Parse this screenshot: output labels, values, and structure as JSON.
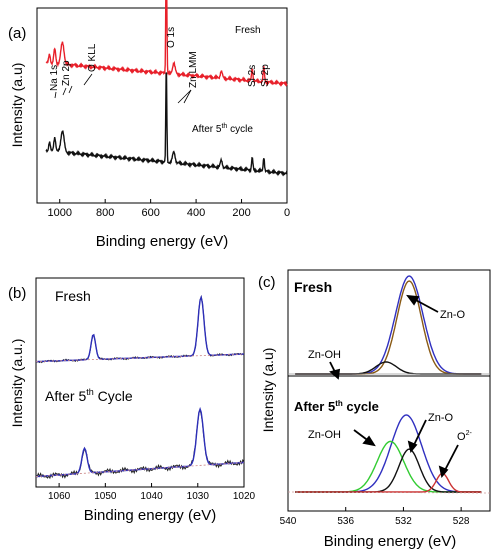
{
  "chart_data": [
    {
      "panel_label": "(a)",
      "type": "line",
      "xlabel": "Binding energy (eV)",
      "ylabel": "Intensity (a.u)",
      "xlim": [
        1100,
        0
      ],
      "x_reversed": true,
      "xticks": [
        1000,
        800,
        600,
        400,
        200,
        0
      ],
      "yticks": [],
      "series": [
        {
          "name": "Fresh",
          "color": "#e8202a",
          "baseline": 0.62,
          "slope": 0.00011,
          "peaks": [
            [
              1072,
              0.04,
              5
            ],
            [
              1022,
              0.08,
              6
            ],
            [
              1045,
              0.05,
              5
            ],
            [
              988,
              0.12,
              10
            ],
            [
              531,
              0.75,
              3
            ],
            [
              498,
              0.06,
              8
            ],
            [
              289,
              0.04,
              6
            ],
            [
              153,
              0.07,
              4
            ],
            [
              102,
              0.08,
              4
            ]
          ]
        },
        {
          "name": "After 5th cycle",
          "color": "#111111",
          "baseline": 0.12,
          "slope": 0.00012,
          "peaks": [
            [
              1072,
              0.04,
              5
            ],
            [
              1022,
              0.08,
              6
            ],
            [
              1045,
              0.05,
              5
            ],
            [
              988,
              0.12,
              10
            ],
            [
              531,
              0.55,
              3
            ],
            [
              498,
              0.06,
              8
            ],
            [
              289,
              0.04,
              6
            ],
            [
              153,
              0.07,
              4
            ],
            [
              102,
              0.08,
              4
            ]
          ]
        }
      ],
      "annotations": [
        "Na 1s",
        "Zn 2p",
        "O KLL",
        "O 1s",
        "Zn LMM",
        "Si 2s",
        "Si 2p"
      ],
      "legend_text": {
        "fresh": "Fresh",
        "after_main": "After 5",
        "after_sup": "th",
        "after_tail": " cycle"
      }
    },
    {
      "panel_label": "(b)",
      "type": "line",
      "xlabel": "Binding energy (eV)",
      "ylabel": "Intensity (a.u.)",
      "xlim": [
        1065,
        1020
      ],
      "x_reversed": true,
      "xticks": [
        1060,
        1050,
        1040,
        1030,
        1020
      ],
      "yticks": [],
      "series": [
        {
          "name": "Fresh",
          "color": "#2d2fb8",
          "baseline": 0.6,
          "slope": 0.0008,
          "peaks": [
            [
              1052.6,
              0.12,
              0.7
            ],
            [
              1029.3,
              0.28,
              0.9
            ]
          ]
        },
        {
          "name": "After 5th Cycle",
          "color": "#2d2fb8",
          "baseline": 0.05,
          "slope": 0.0015,
          "peaks": [
            [
              1054.5,
              0.12,
              0.8
            ],
            [
              1029.5,
              0.27,
              1.0
            ]
          ]
        }
      ],
      "legend_text": {
        "fresh": "Fresh",
        "after_main": "After 5",
        "after_sup": "th",
        "after_tail": " Cycle"
      }
    },
    {
      "panel_label": "(c)",
      "type": "line",
      "xlabel": "Binding energy (eV)",
      "ylabel": "Intensity (a.u)",
      "xlim": [
        540,
        526
      ],
      "x_reversed": true,
      "xticks": [
        540,
        536,
        532,
        528
      ],
      "yticks": [],
      "series": [
        {
          "name": "Fresh envelope",
          "color": "#3030c0",
          "center": 531.6,
          "height": 0.98,
          "width": 1.35
        },
        {
          "name": "Fresh Zn-O",
          "color": "#8a5a14",
          "center": 531.6,
          "height": 0.93,
          "width": 1.2
        },
        {
          "name": "Fresh Zn-OH",
          "color": "#111111",
          "center": 533.2,
          "height": 0.12,
          "width": 1.0
        },
        {
          "name": "After envelope",
          "color": "#3030c0",
          "center": 531.8,
          "height": 0.7,
          "width": 1.5
        },
        {
          "name": "After Zn-OH",
          "color": "#33cc33",
          "center": 532.9,
          "height": 0.46,
          "width": 1.3
        },
        {
          "name": "After Zn-O",
          "color": "#111111",
          "center": 531.6,
          "height": 0.39,
          "width": 1.0
        },
        {
          "name": "After O2-",
          "color": "#cc3333",
          "center": 529.3,
          "height": 0.17,
          "width": 0.6
        }
      ],
      "labels": {
        "fresh": "Fresh",
        "zno_top": "Zn-O",
        "znoh_top": "Zn-OH",
        "after_main": "After 5",
        "after_sup": "th",
        "after_tail": " cycle",
        "znoh_bottom": "Zn-OH",
        "zno_bottom": "Zn-O",
        "o2_main": "O",
        "o2_sup": "2-"
      }
    }
  ]
}
